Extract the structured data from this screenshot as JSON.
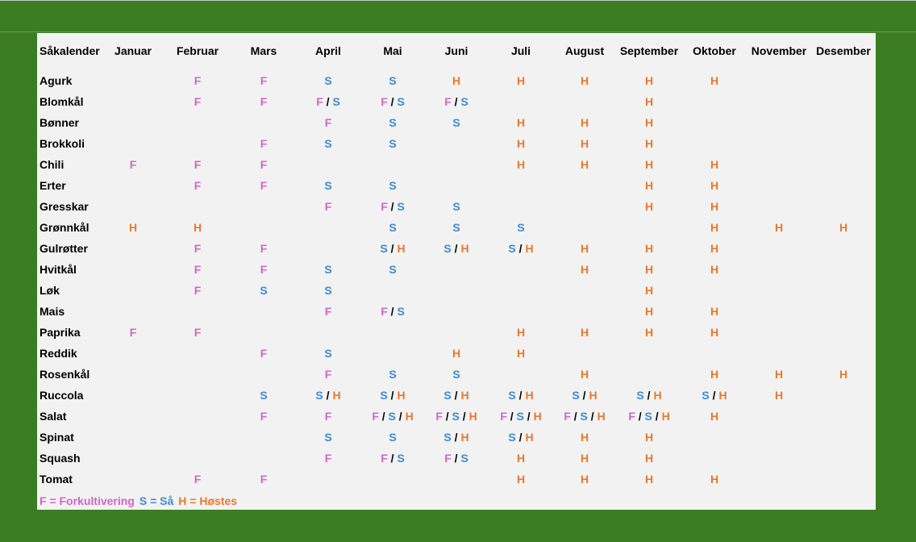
{
  "colors": {
    "F": "#d263c9",
    "S": "#3d8ad0",
    "H": "#e8782d",
    "frame": "#3a7d22",
    "sheet": "#f2f2f2"
  },
  "header": {
    "title": "Såkalender",
    "months": [
      "Januar",
      "Februar",
      "Mars",
      "April",
      "Mai",
      "Juni",
      "Juli",
      "August",
      "September",
      "Oktober",
      "November",
      "Desember"
    ]
  },
  "rows": [
    {
      "name": "Agurk",
      "cells": [
        "",
        "F",
        "F",
        "S",
        "S",
        "H",
        "H",
        "H",
        "H",
        "H",
        "",
        ""
      ]
    },
    {
      "name": "Blomkål",
      "cells": [
        "",
        "F",
        "F",
        "F/S",
        "F/S",
        "F/S",
        "",
        "",
        "H",
        "",
        "",
        ""
      ]
    },
    {
      "name": "Bønner",
      "cells": [
        "",
        "",
        "",
        "F",
        "S",
        "S",
        "H",
        "H",
        "H",
        "",
        "",
        ""
      ]
    },
    {
      "name": "Brokkoli",
      "cells": [
        "",
        "",
        "F",
        "S",
        "S",
        "",
        "H",
        "H",
        "H",
        "",
        "",
        ""
      ]
    },
    {
      "name": "Chili",
      "cells": [
        "F",
        "F",
        "F",
        "",
        "",
        "",
        "H",
        "H",
        "H",
        "H",
        "",
        ""
      ]
    },
    {
      "name": "Erter",
      "cells": [
        "",
        "F",
        "F",
        "S",
        "S",
        "",
        "",
        "",
        "H",
        "H",
        "",
        ""
      ]
    },
    {
      "name": "Gresskar",
      "cells": [
        "",
        "",
        "",
        "F",
        "F/S",
        "S",
        "",
        "",
        "H",
        "H",
        "",
        ""
      ]
    },
    {
      "name": "Grønnkål",
      "cells": [
        "H",
        "H",
        "",
        "",
        "S",
        "S",
        "S",
        "",
        "",
        "H",
        "H",
        "H"
      ]
    },
    {
      "name": "Gulrøtter",
      "cells": [
        "",
        "F",
        "F",
        "",
        "S/H",
        "S/H",
        "S/H",
        "H",
        "H",
        "H",
        "",
        ""
      ]
    },
    {
      "name": "Hvitkål",
      "cells": [
        "",
        "F",
        "F",
        "S",
        "S",
        "",
        "",
        "H",
        "H",
        "H",
        "",
        ""
      ]
    },
    {
      "name": "Løk",
      "cells": [
        "",
        "F",
        "S",
        "S",
        "",
        "",
        "",
        "",
        "H",
        "",
        "",
        ""
      ]
    },
    {
      "name": "Mais",
      "cells": [
        "",
        "",
        "",
        "F",
        "F/S",
        "",
        "",
        "",
        "H",
        "H",
        "",
        ""
      ]
    },
    {
      "name": "Paprika",
      "cells": [
        "F",
        "F",
        "",
        "",
        "",
        "",
        "H",
        "H",
        "H",
        "H",
        "",
        ""
      ]
    },
    {
      "name": "Reddik",
      "cells": [
        "",
        "",
        "F",
        "S",
        "",
        "H",
        "H",
        "",
        "",
        "",
        "",
        ""
      ]
    },
    {
      "name": "Rosenkål",
      "cells": [
        "",
        "",
        "",
        "F",
        "S",
        "S",
        "",
        "H",
        "",
        "H",
        "H",
        "H"
      ]
    },
    {
      "name": "Ruccola",
      "cells": [
        "",
        "",
        "S",
        "S/H",
        "S/H",
        "S/H",
        "S/H",
        "S/H",
        "S/H",
        "S/H",
        "H",
        ""
      ]
    },
    {
      "name": "Salat",
      "cells": [
        "",
        "",
        "F",
        "F",
        "F/S/H",
        "F/S/H",
        "F/S/H",
        "F/S/H",
        "F/S/H",
        "H",
        "",
        ""
      ]
    },
    {
      "name": "Spinat",
      "cells": [
        "",
        "",
        "",
        "S",
        "S",
        "S/H",
        "S/H",
        "H",
        "H",
        "",
        "",
        ""
      ]
    },
    {
      "name": "Squash",
      "cells": [
        "",
        "",
        "",
        "F",
        "F/S",
        "F/S",
        "H",
        "H",
        "H",
        "",
        "",
        ""
      ]
    },
    {
      "name": "Tomat",
      "cells": [
        "",
        "F",
        "F",
        "",
        "",
        "",
        "H",
        "H",
        "H",
        "H",
        "",
        ""
      ]
    }
  ],
  "legend": [
    {
      "key": "F",
      "text": "F = Forkultivering"
    },
    {
      "key": "S",
      "text": "S = Så"
    },
    {
      "key": "H",
      "text": "H = Høstes"
    }
  ]
}
